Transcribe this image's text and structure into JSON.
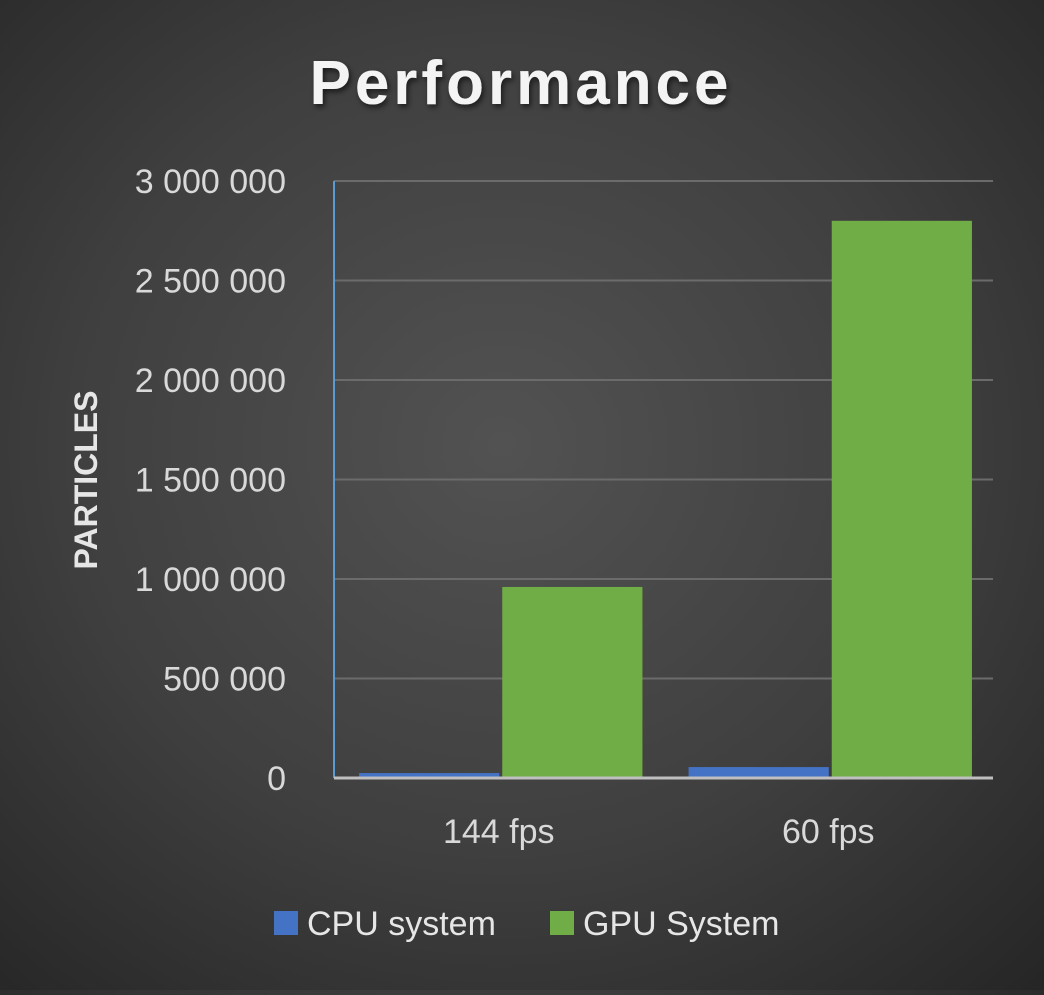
{
  "chart_data": {
    "type": "bar",
    "title": "Performance",
    "xlabel": "",
    "ylabel": "PARTICLES",
    "categories": [
      "144 fps",
      "60 fps"
    ],
    "series": [
      {
        "name": "CPU system",
        "values": [
          25000,
          55000
        ],
        "color": "#4472c4"
      },
      {
        "name": "GPU System",
        "values": [
          960000,
          2800000
        ],
        "color": "#70ad47"
      }
    ],
    "ylim": [
      0,
      3000000
    ],
    "yticks": [
      0,
      500000,
      1000000,
      1500000,
      2000000,
      2500000,
      3000000
    ],
    "ytick_labels": [
      "0",
      "500 000",
      "1 000 000",
      "1 500 000",
      "2 000 000",
      "2 500 000",
      "3 000 000"
    ],
    "grid": true,
    "legend_position": "bottom"
  }
}
